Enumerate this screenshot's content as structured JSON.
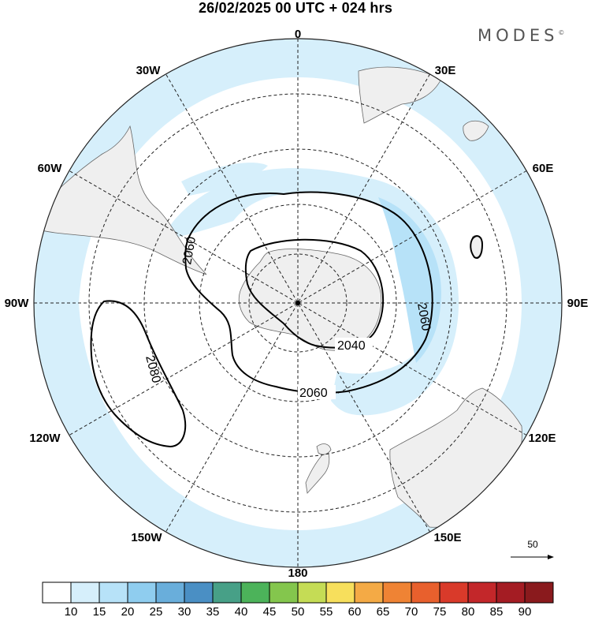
{
  "title": "26/02/2025  00 UTC  + 024 hrs",
  "brand": {
    "name": "MODES",
    "mark": "©"
  },
  "longitude_labels": {
    "deg0": "0",
    "deg30e": "30E",
    "deg60e": "60E",
    "deg90e": "90E",
    "deg120e": "120E",
    "deg150e": "150E",
    "deg180": "180",
    "deg150w": "150W",
    "deg120w": "120W",
    "deg90w": "90W",
    "deg60w": "60W",
    "deg30w": "30W"
  },
  "contours": {
    "label_2040": "2040",
    "label_2060_a": "2060",
    "label_2060_b": "2060",
    "label_2060_c": "2060",
    "label_2080": "2080"
  },
  "vector_reference": {
    "value": "50"
  },
  "colorbar": {
    "ticks": [
      "10",
      "15",
      "20",
      "25",
      "30",
      "35",
      "40",
      "45",
      "50",
      "55",
      "60",
      "65",
      "70",
      "75",
      "80",
      "85",
      "90"
    ],
    "colors": [
      "#ffffff",
      "#d6effb",
      "#b7e2f8",
      "#8fcdef",
      "#69aedb",
      "#4a8fc4",
      "#47a087",
      "#4cb35a",
      "#84c64d",
      "#c5dc55",
      "#f7df5c",
      "#f4aa45",
      "#ef8334",
      "#e8602d",
      "#d93a2a",
      "#c3272a",
      "#a41c23",
      "#8a1a1d"
    ]
  }
}
